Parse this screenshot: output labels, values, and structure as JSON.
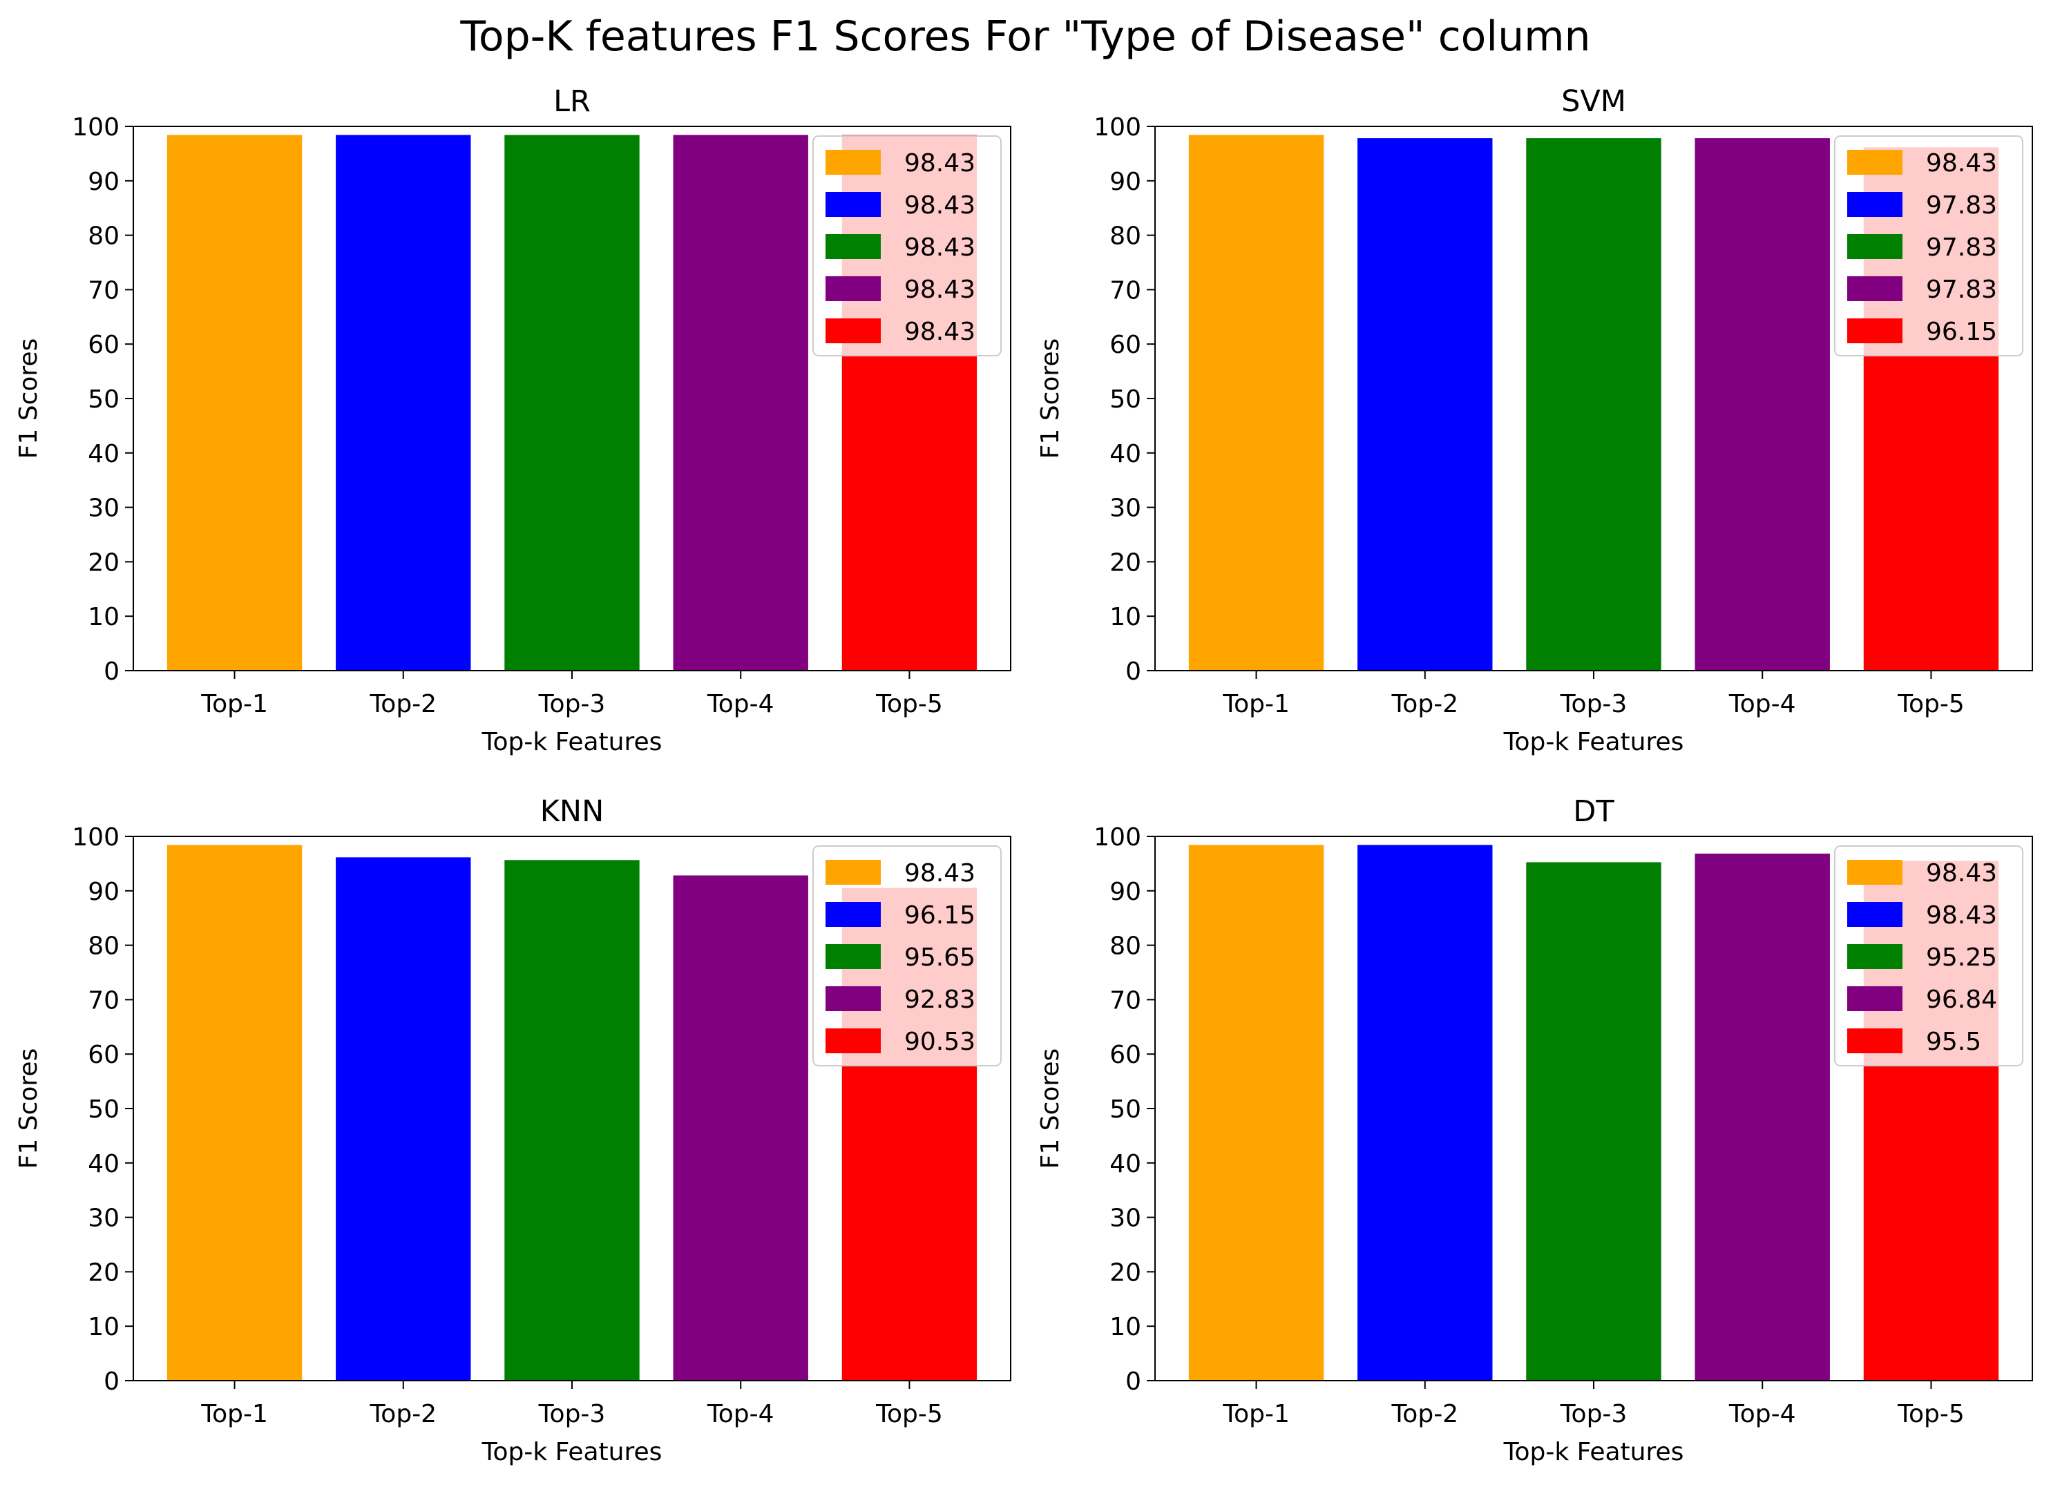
{
  "figure": {
    "title": "Top-K features F1 Scores For \"Type of Disease\" column"
  },
  "chart_data": [
    {
      "type": "bar",
      "title": "LR",
      "xlabel": "Top-k Features",
      "ylabel": "F1 Scores",
      "categories": [
        "Top-1",
        "Top-2",
        "Top-3",
        "Top-4",
        "Top-5"
      ],
      "values": [
        98.43,
        98.43,
        98.43,
        98.43,
        98.43
      ],
      "legend": [
        "98.43",
        "98.43",
        "98.43",
        "98.43",
        "98.43"
      ],
      "colors": [
        "#FFA500",
        "#0000FF",
        "#008000",
        "#800080",
        "#FF0000"
      ],
      "ylim": [
        0,
        100
      ],
      "yticks": [
        0,
        10,
        20,
        30,
        40,
        50,
        60,
        70,
        80,
        90,
        100
      ],
      "legend_position": "top-right",
      "grid": false
    },
    {
      "type": "bar",
      "title": "SVM",
      "xlabel": "Top-k Features",
      "ylabel": "F1 Scores",
      "categories": [
        "Top-1",
        "Top-2",
        "Top-3",
        "Top-4",
        "Top-5"
      ],
      "values": [
        98.43,
        97.83,
        97.83,
        97.83,
        96.15
      ],
      "legend": [
        "98.43",
        "97.83",
        "97.83",
        "97.83",
        "96.15"
      ],
      "colors": [
        "#FFA500",
        "#0000FF",
        "#008000",
        "#800080",
        "#FF0000"
      ],
      "ylim": [
        0,
        100
      ],
      "yticks": [
        0,
        10,
        20,
        30,
        40,
        50,
        60,
        70,
        80,
        90,
        100
      ],
      "legend_position": "top-right",
      "grid": false
    },
    {
      "type": "bar",
      "title": "KNN",
      "xlabel": "Top-k Features",
      "ylabel": "F1 Scores",
      "categories": [
        "Top-1",
        "Top-2",
        "Top-3",
        "Top-4",
        "Top-5"
      ],
      "values": [
        98.43,
        96.15,
        95.65,
        92.83,
        90.53
      ],
      "legend": [
        "98.43",
        "96.15",
        "95.65",
        "92.83",
        "90.53"
      ],
      "colors": [
        "#FFA500",
        "#0000FF",
        "#008000",
        "#800080",
        "#FF0000"
      ],
      "ylim": [
        0,
        100
      ],
      "yticks": [
        0,
        10,
        20,
        30,
        40,
        50,
        60,
        70,
        80,
        90,
        100
      ],
      "legend_position": "top-right",
      "grid": false
    },
    {
      "type": "bar",
      "title": "DT",
      "xlabel": "Top-k Features",
      "ylabel": "F1 Scores",
      "categories": [
        "Top-1",
        "Top-2",
        "Top-3",
        "Top-4",
        "Top-5"
      ],
      "values": [
        98.43,
        98.43,
        95.25,
        96.84,
        95.5
      ],
      "legend": [
        "98.43",
        "98.43",
        "95.25",
        "96.84",
        "95.5"
      ],
      "colors": [
        "#FFA500",
        "#0000FF",
        "#008000",
        "#800080",
        "#FF0000"
      ],
      "ylim": [
        0,
        100
      ],
      "yticks": [
        0,
        10,
        20,
        30,
        40,
        50,
        60,
        70,
        80,
        90,
        100
      ],
      "legend_position": "top-right",
      "grid": false
    }
  ]
}
